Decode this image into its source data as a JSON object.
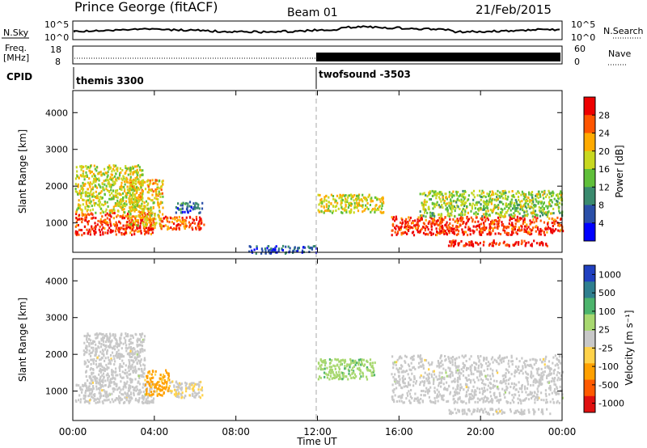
{
  "header": {
    "station": "Prince George (fitACF)",
    "beam": "Beam 01",
    "date": "21/Feb/2015"
  },
  "nsky_panel": {
    "left_label": "N.Sky",
    "left_ticks": [
      "10^5",
      "10^0"
    ],
    "right_label": "N.Search",
    "right_ticks": [
      "10^5",
      "10^0"
    ]
  },
  "freq_panel": {
    "left_label_1": "Freq.",
    "left_label_2": "[MHz]",
    "left_ticks": [
      "18",
      "8"
    ],
    "right_label": "Nave",
    "right_ticks": [
      "60",
      "0"
    ]
  },
  "cpid": {
    "label": "CPID",
    "segments": [
      {
        "name": "themis 3300",
        "start_hour": 0
      },
      {
        "name": "twofsound -3503",
        "start_hour": 12
      }
    ]
  },
  "colors": {
    "power_scale": [
      "#0000ff",
      "#2a4fa8",
      "#3a8a6e",
      "#5fbf3a",
      "#c8d820",
      "#ffaa00",
      "#ff5500",
      "#ee0000"
    ],
    "velocity_scale": [
      "#2040c0",
      "#2f7f8f",
      "#4cb46c",
      "#a8d870",
      "#c8c8c8",
      "#ffd24a",
      "#ffa000",
      "#ff5a00",
      "#e01010"
    ]
  },
  "chart_data": [
    {
      "type": "heatmap",
      "title": "Power",
      "ylabel": "Slant Range [km]",
      "yticks": [
        "1000",
        "2000",
        "3000",
        "4000"
      ],
      "ylim": [
        200,
        4600
      ],
      "xlim": [
        0,
        24
      ],
      "colorbar": {
        "label": "Power [dB]",
        "ticks": [
          "4",
          "8",
          "12",
          "16",
          "20",
          "24",
          "28"
        ],
        "range": [
          0,
          32
        ]
      },
      "regions": [
        {
          "t": [
            0.1,
            4.0
          ],
          "r": [
            700,
            1300
          ],
          "level": 28
        },
        {
          "t": [
            0.1,
            3.4
          ],
          "r": [
            1300,
            2600
          ],
          "level": 18
        },
        {
          "t": [
            2.7,
            4.4
          ],
          "r": [
            900,
            2200
          ],
          "level": 20
        },
        {
          "t": [
            4.2,
            6.4
          ],
          "r": [
            850,
            1200
          ],
          "level": 26
        },
        {
          "t": [
            5.0,
            6.4
          ],
          "r": [
            1300,
            1600
          ],
          "level": 8
        },
        {
          "t": [
            8.6,
            11.9
          ],
          "r": [
            200,
            400
          ],
          "level": 6
        },
        {
          "t": [
            12.0,
            15.2
          ],
          "r": [
            1300,
            1800
          ],
          "level": 18
        },
        {
          "t": [
            15.6,
            24.0
          ],
          "r": [
            700,
            1200
          ],
          "level": 28
        },
        {
          "t": [
            17.0,
            24.0
          ],
          "r": [
            1200,
            1900
          ],
          "level": 16
        },
        {
          "t": [
            18.4,
            23.4
          ],
          "r": [
            400,
            550
          ],
          "level": 30
        }
      ]
    },
    {
      "type": "heatmap",
      "title": "Velocity",
      "ylabel": "Slant Range [km]",
      "yticks": [
        "1000",
        "2000",
        "3000",
        "4000"
      ],
      "ylim": [
        200,
        4600
      ],
      "xlim": [
        0,
        24
      ],
      "colorbar": {
        "label": "Velocity [m s⁻¹]",
        "ticks": [
          "1000",
          "500",
          "100",
          "25",
          "-25",
          "-100",
          "-500",
          "-1000"
        ],
        "range": [
          -1200,
          1200
        ]
      },
      "regions": [
        {
          "t": [
            0.1,
            4.0
          ],
          "r": [
            700,
            1300
          ],
          "level": 0
        },
        {
          "t": [
            0.5,
            3.5
          ],
          "r": [
            1300,
            2600
          ],
          "level": 0
        },
        {
          "t": [
            3.5,
            4.7
          ],
          "r": [
            900,
            1600
          ],
          "level": -500
        },
        {
          "t": [
            4.7,
            6.4
          ],
          "r": [
            850,
            1300
          ],
          "level": -100
        },
        {
          "t": [
            12.0,
            14.8
          ],
          "r": [
            1350,
            1900
          ],
          "level": 300
        },
        {
          "t": [
            15.6,
            24.0
          ],
          "r": [
            700,
            2000
          ],
          "level": 0
        },
        {
          "t": [
            18.4,
            23.4
          ],
          "r": [
            400,
            550
          ],
          "level": 0
        }
      ]
    }
  ],
  "xaxis": {
    "label": "Time UT",
    "ticks": [
      "00:00",
      "04:00",
      "08:00",
      "12:00",
      "16:00",
      "20:00",
      "00:00"
    ]
  }
}
